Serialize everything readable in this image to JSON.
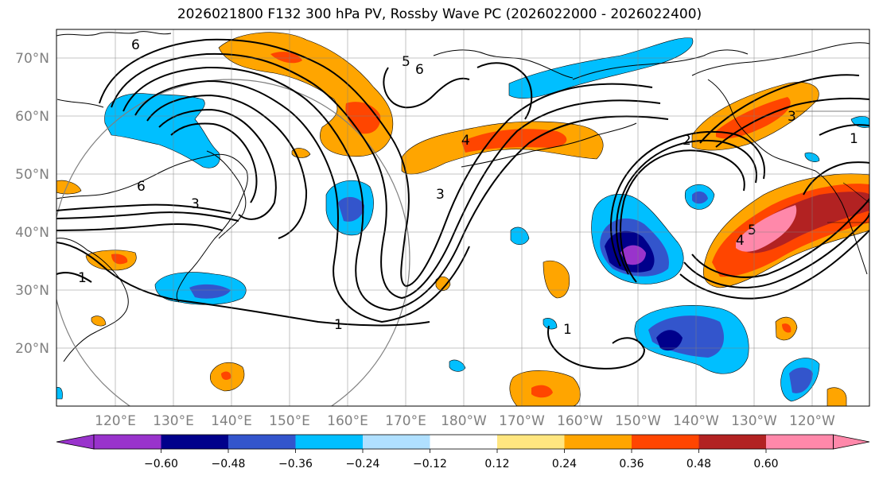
{
  "title": "2026021800 F132 300 hPa PV, Rossby Wave PC (2026022000 - 2026022400)",
  "lat_labels": [
    "70°N",
    "60°N",
    "50°N",
    "40°N",
    "30°N",
    "20°N"
  ],
  "lon_labels": [
    "120°E",
    "130°E",
    "140°E",
    "150°E",
    "160°E",
    "170°E",
    "180°W",
    "170°W",
    "160°W",
    "150°W",
    "140°W",
    "130°W",
    "120°W"
  ],
  "colorbar": {
    "ticks": [
      "−0.60",
      "−0.48",
      "−0.36",
      "−0.24",
      "−0.12",
      "0.12",
      "0.24",
      "0.36",
      "0.48",
      "0.60"
    ],
    "colors": [
      "#9933cc",
      "#00008b",
      "#3355cc",
      "#00bfff",
      "#b0e0ff",
      "#ffffff",
      "#ffe680",
      "#ffa500",
      "#ff4500",
      "#b22222",
      "#ff88aa"
    ]
  },
  "contour_labels": [
    "6",
    "6",
    "5",
    "3",
    "4",
    "3",
    "1",
    "1",
    "1",
    "2",
    "3",
    "6",
    "4",
    "5",
    "1"
  ]
}
